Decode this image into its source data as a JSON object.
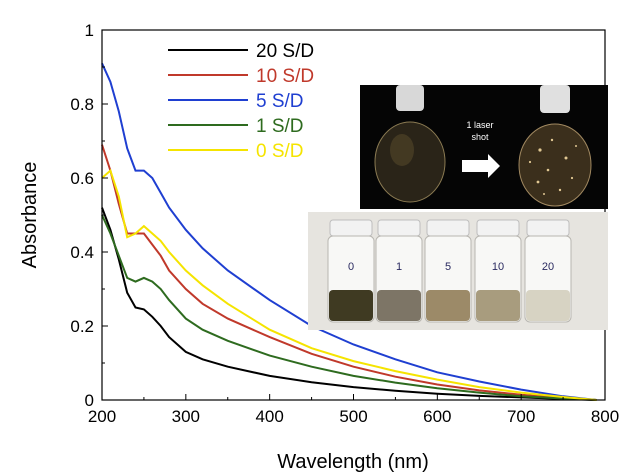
{
  "chart_data": {
    "type": "line",
    "xlabel": "Wavelength (nm)",
    "ylabel": "Absorbance",
    "xlim": [
      200,
      800
    ],
    "ylim": [
      0,
      1
    ],
    "xticks": [
      "200",
      "300",
      "400",
      "500",
      "600",
      "700",
      "800"
    ],
    "yticks": [
      "0",
      "0.2",
      "0.4",
      "0.6",
      "0.8",
      "1"
    ],
    "grid": false,
    "legend_position": "top-center",
    "series": [
      {
        "name": "20 S/D",
        "color": "#000000",
        "x": [
          200,
          210,
          220,
          230,
          240,
          250,
          260,
          270,
          280,
          300,
          320,
          350,
          400,
          450,
          500,
          550,
          600,
          650,
          700,
          750,
          790
        ],
        "y": [
          0.52,
          0.46,
          0.38,
          0.29,
          0.25,
          0.245,
          0.225,
          0.2,
          0.17,
          0.13,
          0.11,
          0.09,
          0.065,
          0.048,
          0.035,
          0.025,
          0.017,
          0.011,
          0.007,
          0.003,
          0.0
        ]
      },
      {
        "name": "10 S/D",
        "color": "#c0392b",
        "x": [
          200,
          210,
          220,
          230,
          240,
          250,
          260,
          270,
          280,
          300,
          320,
          350,
          400,
          450,
          500,
          550,
          600,
          650,
          700,
          750,
          790
        ],
        "y": [
          0.69,
          0.62,
          0.53,
          0.45,
          0.45,
          0.45,
          0.42,
          0.39,
          0.35,
          0.3,
          0.26,
          0.22,
          0.17,
          0.125,
          0.09,
          0.063,
          0.042,
          0.026,
          0.014,
          0.005,
          0.0
        ]
      },
      {
        "name": "5 S/D",
        "color": "#1f3fd1",
        "x": [
          200,
          210,
          220,
          230,
          240,
          250,
          260,
          270,
          280,
          300,
          320,
          350,
          400,
          450,
          500,
          550,
          600,
          650,
          700,
          750,
          790
        ],
        "y": [
          0.91,
          0.86,
          0.78,
          0.68,
          0.62,
          0.62,
          0.6,
          0.56,
          0.52,
          0.46,
          0.41,
          0.35,
          0.27,
          0.2,
          0.15,
          0.11,
          0.075,
          0.05,
          0.028,
          0.01,
          0.0
        ]
      },
      {
        "name": "1 S/D",
        "color": "#2e6b1f",
        "x": [
          200,
          210,
          220,
          230,
          240,
          250,
          260,
          270,
          280,
          300,
          320,
          350,
          400,
          450,
          500,
          550,
          600,
          650,
          700,
          750,
          790
        ],
        "y": [
          0.5,
          0.45,
          0.39,
          0.33,
          0.32,
          0.33,
          0.32,
          0.3,
          0.27,
          0.22,
          0.19,
          0.16,
          0.12,
          0.09,
          0.065,
          0.047,
          0.032,
          0.02,
          0.01,
          0.004,
          0.0
        ]
      },
      {
        "name": "0 S/D",
        "color": "#f5e400",
        "x": [
          200,
          210,
          220,
          230,
          240,
          250,
          260,
          270,
          280,
          300,
          320,
          350,
          400,
          450,
          500,
          550,
          600,
          650,
          700,
          750,
          790
        ],
        "y": [
          0.6,
          0.62,
          0.55,
          0.44,
          0.45,
          0.47,
          0.45,
          0.43,
          0.4,
          0.35,
          0.31,
          0.26,
          0.19,
          0.14,
          0.105,
          0.078,
          0.055,
          0.035,
          0.02,
          0.008,
          0.0
        ]
      }
    ]
  },
  "inset_top": {
    "arrow_text_line1": "1 laser",
    "arrow_text_line2": "shot"
  },
  "inset_bottom": {
    "vial_labels": [
      "0",
      "1",
      "5",
      "10",
      "20"
    ],
    "vial_liquid_colors": [
      "#3f3a22",
      "#7d7566",
      "#9c8a68",
      "#a89c7e",
      "#d7d3c3"
    ]
  }
}
